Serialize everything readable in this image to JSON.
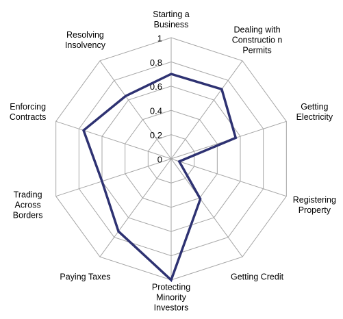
{
  "chart_data": {
    "type": "radar",
    "categories": [
      "Starting a Business",
      "Dealing with Constructio n Permits",
      "Getting Electricity",
      "Registering Property",
      "Getting Credit",
      "Protecting Minority Investors",
      "Paying Taxes",
      "Trading Across Borders",
      "Enforcing Contracts",
      "Resolving Insolvency"
    ],
    "values": [
      0.7,
      0.71,
      0.56,
      0.07,
      0.41,
      1.0,
      0.74,
      0.6,
      0.76,
      0.64
    ],
    "color": "#2e3272",
    "ylim": [
      0,
      1
    ],
    "yticks": [
      0,
      0.2,
      0.4,
      0.6,
      0.8,
      1
    ],
    "grid": true
  }
}
